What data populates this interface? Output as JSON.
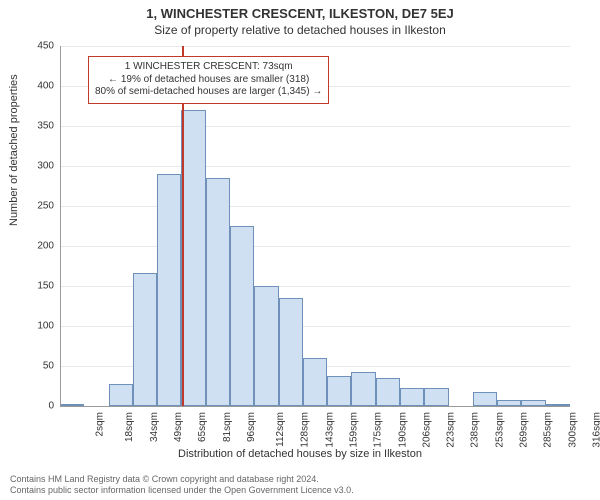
{
  "title": "1, WINCHESTER CRESCENT, ILKESTON, DE7 5EJ",
  "subtitle": "Size of property relative to detached houses in Ilkeston",
  "y_axis_label": "Number of detached properties",
  "x_axis_label": "Distribution of detached houses by size in Ilkeston",
  "footer_line1": "Contains HM Land Registry data © Crown copyright and database right 2024.",
  "footer_line2": "Contains public sector information licensed under the Open Government Licence v3.0.",
  "chart": {
    "type": "histogram",
    "ylim": [
      0,
      450
    ],
    "ytick_step": 50,
    "background_color": "#ffffff",
    "grid_color": "#e8e8e8",
    "axis_color": "#999999",
    "bar_fill": "#cfe0f2",
    "bar_stroke": "rgba(70,110,160,0.7)",
    "marker_color": "#c0392b",
    "marker_x_value": 73,
    "x_categories": [
      "2sqm",
      "18sqm",
      "34sqm",
      "49sqm",
      "65sqm",
      "81sqm",
      "96sqm",
      "112sqm",
      "128sqm",
      "143sqm",
      "159sqm",
      "175sqm",
      "190sqm",
      "206sqm",
      "223sqm",
      "238sqm",
      "253sqm",
      "269sqm",
      "285sqm",
      "300sqm",
      "316sqm"
    ],
    "values": [
      3,
      0,
      28,
      166,
      290,
      370,
      285,
      225,
      150,
      135,
      60,
      38,
      42,
      35,
      22,
      22,
      0,
      18,
      8,
      8,
      3
    ],
    "label_fontsize": 11,
    "tick_fontsize": 10,
    "title_fontsize": 13
  },
  "annotation": {
    "line1": "1 WINCHESTER CRESCENT: 73sqm",
    "line2": "← 19% of detached houses are smaller (318)",
    "line3": "80% of semi-detached houses are larger (1,345) →"
  }
}
